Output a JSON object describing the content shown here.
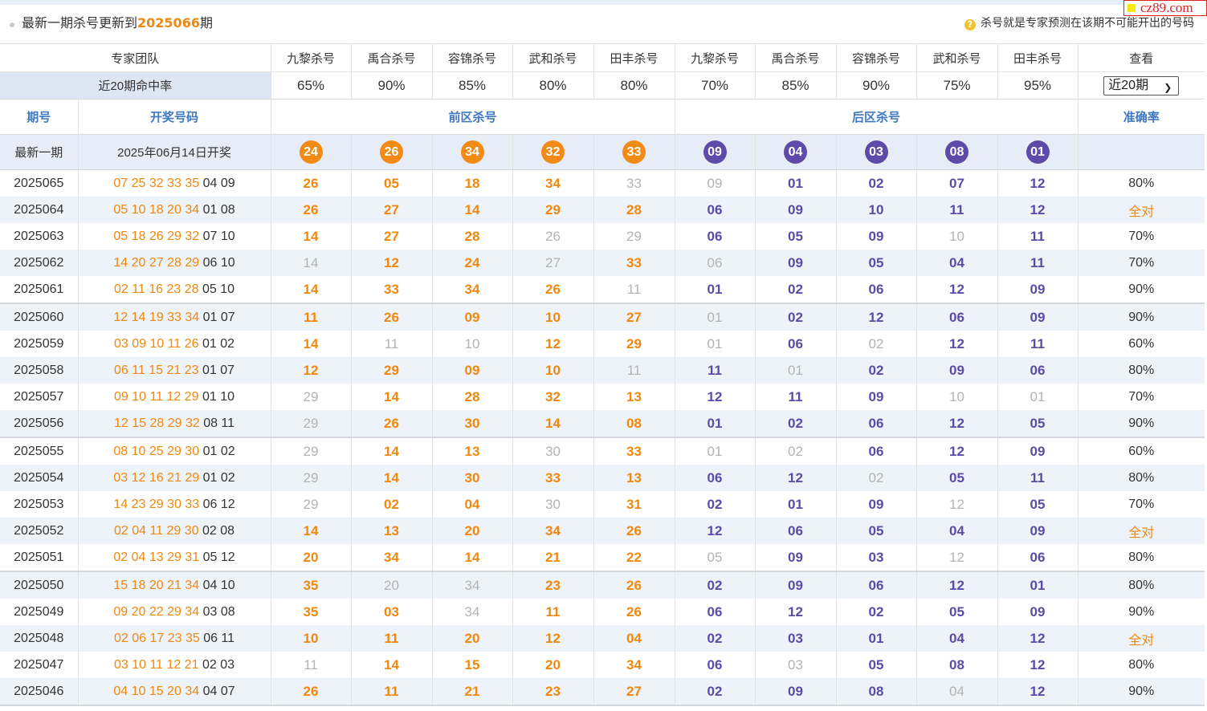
{
  "watermark": "cz89.com",
  "caption": {
    "prefix": "最新一期杀号更新到",
    "period": "2025066",
    "suffix": "期",
    "hint_icon": "question-circle-icon",
    "hint": "杀号就是专家预测在该期不可能开出的号码"
  },
  "header": {
    "team_label": "专家团队",
    "experts": [
      "九黎杀号",
      "禹合杀号",
      "容锦杀号",
      "武和杀号",
      "田丰杀号",
      "九黎杀号",
      "禹合杀号",
      "容锦杀号",
      "武和杀号",
      "田丰杀号"
    ],
    "view_label": "查看",
    "rate_label": "近20期命中率",
    "rates": [
      "65%",
      "90%",
      "85%",
      "80%",
      "80%",
      "70%",
      "85%",
      "90%",
      "75%",
      "95%"
    ],
    "select_value": "近20期"
  },
  "columns": {
    "period": "期号",
    "draw": "开奖号码",
    "front": "前区杀号",
    "back": "后区杀号",
    "accuracy": "准确率"
  },
  "latest": {
    "label": "最新一期",
    "date": "2025年06月14日开奖",
    "front": [
      "24",
      "26",
      "34",
      "32",
      "33"
    ],
    "back": [
      "09",
      "04",
      "03",
      "08",
      "01"
    ]
  },
  "colors": {
    "front": "#f0880f",
    "back": "#5c4ba6",
    "miss": "#b3b3b3"
  },
  "rows": [
    {
      "period": "2025065",
      "front_draw": "07 25 32 33 35",
      "back_draw": "04 09",
      "kills": [
        "26",
        "05",
        "18",
        "34",
        "33",
        "09",
        "01",
        "02",
        "07",
        "12"
      ],
      "miss": [
        4,
        5
      ],
      "acc": "80%"
    },
    {
      "period": "2025064",
      "front_draw": "05 10 18 20 34",
      "back_draw": "01 08",
      "kills": [
        "26",
        "27",
        "14",
        "29",
        "28",
        "06",
        "09",
        "10",
        "11",
        "12"
      ],
      "miss": [],
      "acc": "全对"
    },
    {
      "period": "2025063",
      "front_draw": "05 18 26 29 32",
      "back_draw": "07 10",
      "kills": [
        "14",
        "27",
        "28",
        "26",
        "29",
        "06",
        "05",
        "09",
        "10",
        "11"
      ],
      "miss": [
        3,
        4,
        8
      ],
      "acc": "70%"
    },
    {
      "period": "2025062",
      "front_draw": "14 20 27 28 29",
      "back_draw": "06 10",
      "kills": [
        "14",
        "12",
        "24",
        "27",
        "33",
        "06",
        "09",
        "05",
        "04",
        "11"
      ],
      "miss": [
        0,
        3,
        5
      ],
      "acc": "70%"
    },
    {
      "period": "2025061",
      "front_draw": "02 11 16 23 28",
      "back_draw": "05 10",
      "kills": [
        "14",
        "33",
        "34",
        "26",
        "11",
        "01",
        "02",
        "06",
        "12",
        "09"
      ],
      "miss": [
        4
      ],
      "acc": "90%"
    },
    {
      "period": "2025060",
      "front_draw": "12 14 19 33 34",
      "back_draw": "01 07",
      "kills": [
        "11",
        "26",
        "09",
        "10",
        "27",
        "01",
        "02",
        "12",
        "06",
        "09"
      ],
      "miss": [
        5
      ],
      "acc": "90%"
    },
    {
      "period": "2025059",
      "front_draw": "03 09 10 11 26",
      "back_draw": "01 02",
      "kills": [
        "14",
        "11",
        "10",
        "12",
        "29",
        "01",
        "06",
        "02",
        "12",
        "11"
      ],
      "miss": [
        1,
        2,
        5,
        7
      ],
      "acc": "60%"
    },
    {
      "period": "2025058",
      "front_draw": "06 11 15 21 23",
      "back_draw": "01 07",
      "kills": [
        "12",
        "29",
        "09",
        "10",
        "11",
        "11",
        "01",
        "02",
        "09",
        "06"
      ],
      "miss": [
        4,
        6
      ],
      "acc": "80%"
    },
    {
      "period": "2025057",
      "front_draw": "09 10 11 12 29",
      "back_draw": "01 10",
      "kills": [
        "29",
        "14",
        "28",
        "32",
        "13",
        "12",
        "11",
        "09",
        "10",
        "01"
      ],
      "miss": [
        0,
        8,
        9
      ],
      "acc": "70%"
    },
    {
      "period": "2025056",
      "front_draw": "12 15 28 29 32",
      "back_draw": "08 11",
      "kills": [
        "29",
        "26",
        "30",
        "14",
        "08",
        "01",
        "02",
        "06",
        "12",
        "05"
      ],
      "miss": [
        0
      ],
      "acc": "90%"
    },
    {
      "period": "2025055",
      "front_draw": "08 10 25 29 30",
      "back_draw": "01 02",
      "kills": [
        "29",
        "14",
        "13",
        "30",
        "33",
        "01",
        "02",
        "06",
        "12",
        "09"
      ],
      "miss": [
        0,
        3,
        5,
        6
      ],
      "acc": "60%"
    },
    {
      "period": "2025054",
      "front_draw": "03 12 16 21 29",
      "back_draw": "01 02",
      "kills": [
        "29",
        "14",
        "30",
        "33",
        "13",
        "06",
        "12",
        "02",
        "05",
        "11"
      ],
      "miss": [
        0,
        7
      ],
      "acc": "80%"
    },
    {
      "period": "2025053",
      "front_draw": "14 23 29 30 33",
      "back_draw": "06 12",
      "kills": [
        "29",
        "02",
        "04",
        "30",
        "31",
        "02",
        "01",
        "09",
        "12",
        "05"
      ],
      "miss": [
        0,
        3,
        8
      ],
      "acc": "70%"
    },
    {
      "period": "2025052",
      "front_draw": "02 04 11 29 30",
      "back_draw": "02 08",
      "kills": [
        "14",
        "13",
        "20",
        "34",
        "26",
        "12",
        "06",
        "05",
        "04",
        "09"
      ],
      "miss": [],
      "acc": "全对"
    },
    {
      "period": "2025051",
      "front_draw": "02 04 13 29 31",
      "back_draw": "05 12",
      "kills": [
        "20",
        "34",
        "14",
        "21",
        "22",
        "05",
        "09",
        "03",
        "12",
        "06"
      ],
      "miss": [
        5,
        8
      ],
      "acc": "80%"
    },
    {
      "period": "2025050",
      "front_draw": "15 18 20 21 34",
      "back_draw": "04 10",
      "kills": [
        "35",
        "20",
        "34",
        "23",
        "26",
        "02",
        "09",
        "06",
        "12",
        "01"
      ],
      "miss": [
        1,
        2
      ],
      "acc": "80%"
    },
    {
      "period": "2025049",
      "front_draw": "09 20 22 29 34",
      "back_draw": "03 08",
      "kills": [
        "35",
        "03",
        "34",
        "11",
        "26",
        "06",
        "12",
        "02",
        "05",
        "09"
      ],
      "miss": [
        2
      ],
      "acc": "90%"
    },
    {
      "period": "2025048",
      "front_draw": "02 06 17 23 35",
      "back_draw": "06 11",
      "kills": [
        "10",
        "11",
        "20",
        "12",
        "04",
        "02",
        "03",
        "01",
        "04",
        "12"
      ],
      "miss": [],
      "acc": "全对"
    },
    {
      "period": "2025047",
      "front_draw": "03 10 11 12 21",
      "back_draw": "02 03",
      "kills": [
        "11",
        "14",
        "15",
        "20",
        "34",
        "06",
        "03",
        "05",
        "08",
        "12"
      ],
      "miss": [
        0,
        6
      ],
      "acc": "80%"
    },
    {
      "period": "2025046",
      "front_draw": "04 10 15 20 34",
      "back_draw": "04 07",
      "kills": [
        "26",
        "11",
        "21",
        "23",
        "27",
        "02",
        "09",
        "08",
        "04",
        "12"
      ],
      "miss": [
        8
      ],
      "acc": "90%"
    }
  ]
}
